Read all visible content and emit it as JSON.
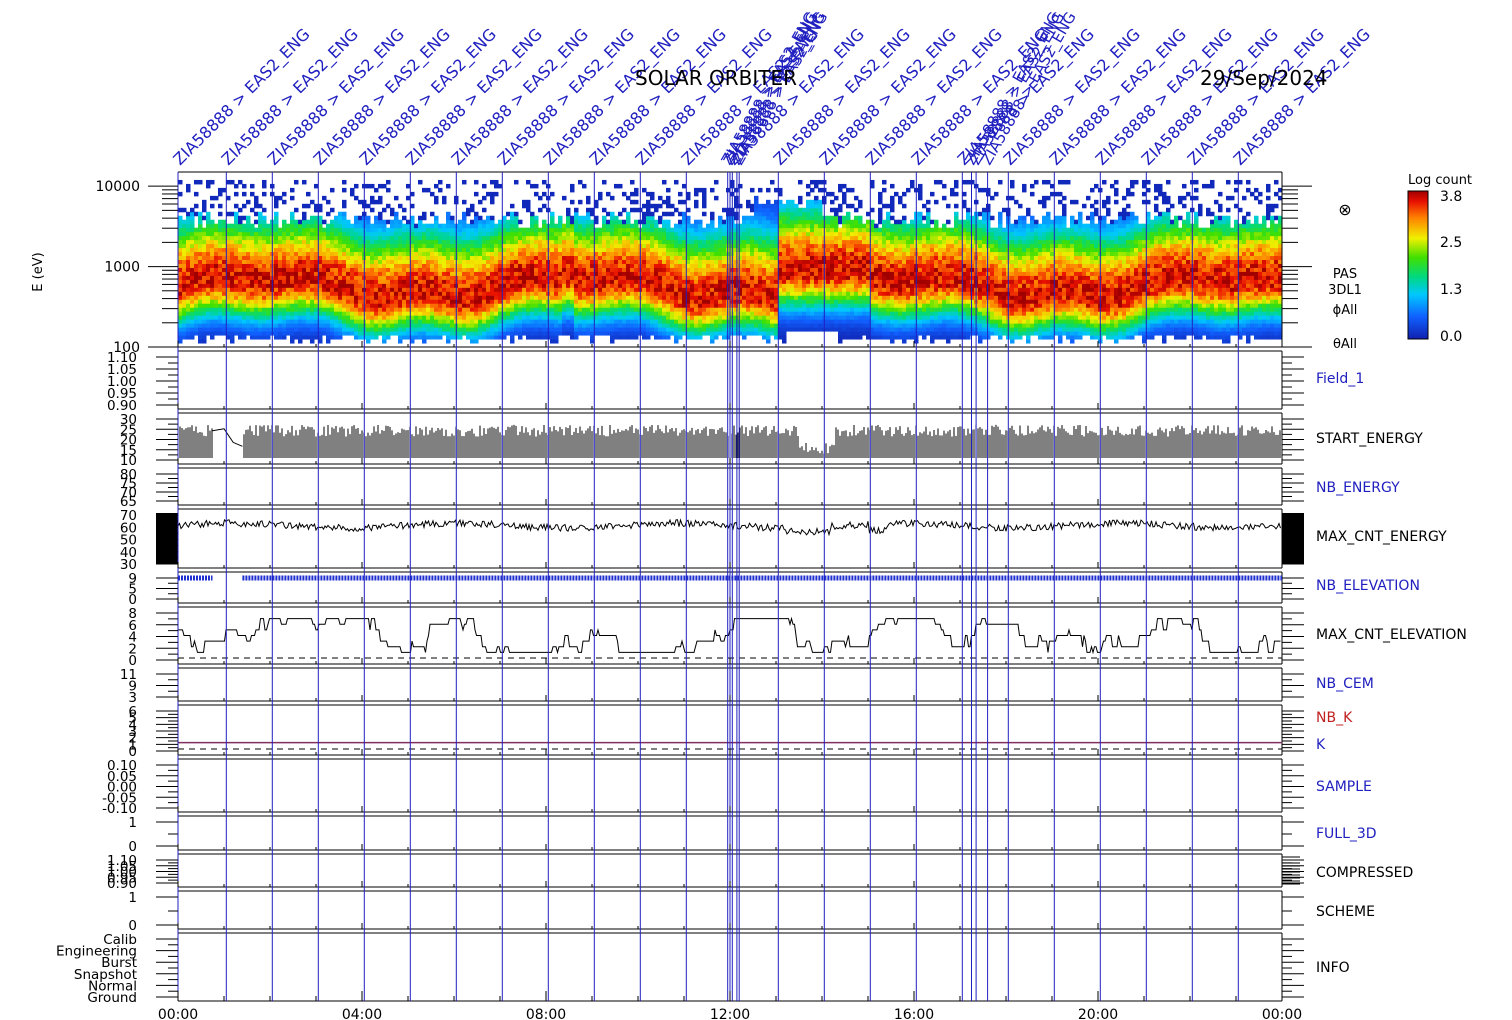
{
  "header": {
    "mission": "SOLAR ORBITER",
    "date": "29/Sep/2024"
  },
  "colors": {
    "annotation_blue": "#2020c0",
    "trace_black": "#000000",
    "nb_elevation_blue": "#2030d0",
    "k_line_purple": "#803060",
    "nb_k_red": "#c02020"
  },
  "event_labels": {
    "text": "ZIA58888 > EAS2_ENG",
    "count": 24
  },
  "colorbar": {
    "title": "Log count",
    "ticks": [
      "3.8",
      "2.5",
      "1.3",
      "0.0"
    ]
  },
  "spectrogram_side_labels": [
    "PAS",
    "3DL1",
    "ϕAll",
    "θAll"
  ],
  "x_axis": {
    "ticks": [
      "00:00",
      "04:00",
      "08:00",
      "12:00",
      "16:00",
      "20:00",
      "00:00"
    ],
    "range_hours": [
      0,
      24
    ]
  },
  "chart_data": {
    "type": "heatmap",
    "title": "SOLAR ORBITER 29/Sep/2024",
    "panels": [
      {
        "name": "spectrogram",
        "ylabel": "E (eV)",
        "scale": "log",
        "yticks": [
          "10000",
          "1000",
          "100"
        ],
        "ylim": [
          100,
          15000
        ],
        "colorbar": "Log count",
        "zlim": [
          0.0,
          3.8
        ]
      },
      {
        "name": "Field_1",
        "yticks": [
          "1.10",
          "1.05",
          "1.00",
          "0.95",
          "0.90"
        ],
        "label_color": "blue"
      },
      {
        "name": "START_ENERGY",
        "yticks": [
          "30",
          "25",
          "20",
          "15",
          "10"
        ],
        "typical_range": [
          10,
          27
        ]
      },
      {
        "name": "NB_ENERGY",
        "yticks": [
          "80",
          "75",
          "70",
          "65"
        ],
        "label_color": "blue"
      },
      {
        "name": "MAX_CNT_ENERGY",
        "yticks": [
          "70",
          "60",
          "50",
          "40",
          "30"
        ],
        "typical_value": 60
      },
      {
        "name": "NB_ELEVATION",
        "yticks": [
          "9",
          "5",
          "0"
        ],
        "value": 9,
        "label_color": "blue"
      },
      {
        "name": "MAX_CNT_ELEVATION",
        "yticks": [
          "8",
          "6",
          "4",
          "2",
          "0"
        ],
        "typical_range": [
          1,
          7
        ]
      },
      {
        "name": "NB_CEM",
        "yticks": [
          "11",
          "9",
          "3"
        ],
        "label_color": "blue"
      },
      {
        "name": "NB_K",
        "second_label": "K",
        "yticks": [
          "6",
          "5",
          "4",
          "3",
          "2",
          "1",
          "0"
        ],
        "value": 1
      },
      {
        "name": "SAMPLE",
        "yticks": [
          "0.10",
          "0.05",
          "0.00",
          "-0.05",
          "-0.10"
        ],
        "label_color": "blue"
      },
      {
        "name": "FULL_3D",
        "yticks": [
          "1",
          "0"
        ],
        "label_color": "blue"
      },
      {
        "name": "COMPRESSED",
        "yticks": [
          "1.10",
          "1.05",
          "1.00",
          "0.95",
          "0.90"
        ]
      },
      {
        "name": "SCHEME",
        "yticks": [
          "1",
          "0"
        ]
      },
      {
        "name": "INFO",
        "yticks": [
          "Calib",
          "Engineering",
          "Burst",
          "Snapshot",
          "Normal",
          "Ground"
        ]
      }
    ]
  }
}
